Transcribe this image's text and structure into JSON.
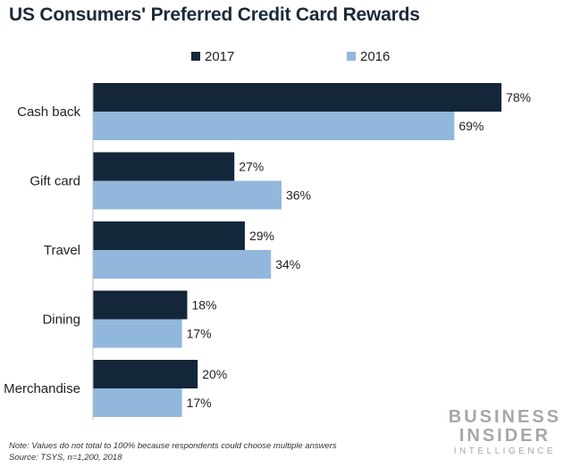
{
  "title": "US Consumers' Preferred Credit Card Rewards",
  "notes": {
    "note": "Note: Values do not total to 100% because respondents could choose multiple answers",
    "source": "Source: TSYS, n=1,200, 2018"
  },
  "logo": {
    "line1": "BUSINESS",
    "line2": "INSIDER",
    "line3": "INTELLIGENCE"
  },
  "colors": {
    "series_2017": "#13263a",
    "series_2016": "#92b7dd"
  },
  "chart_data": {
    "type": "bar",
    "orientation": "horizontal",
    "title": "US Consumers' Preferred Credit Card Rewards",
    "categories": [
      "Cash back",
      "Gift card",
      "Travel",
      "Dining",
      "Merchandise"
    ],
    "series": [
      {
        "name": "2017",
        "values": [
          78,
          27,
          29,
          18,
          20
        ],
        "labels": [
          "78%",
          "27%",
          "29%",
          "18%",
          "20%"
        ]
      },
      {
        "name": "2016",
        "values": [
          69,
          36,
          34,
          17,
          17
        ],
        "labels": [
          "69%",
          "36%",
          "34%",
          "17%",
          "17%"
        ]
      }
    ],
    "xlim": [
      0,
      80
    ],
    "legend_position": "top",
    "grid": false
  }
}
